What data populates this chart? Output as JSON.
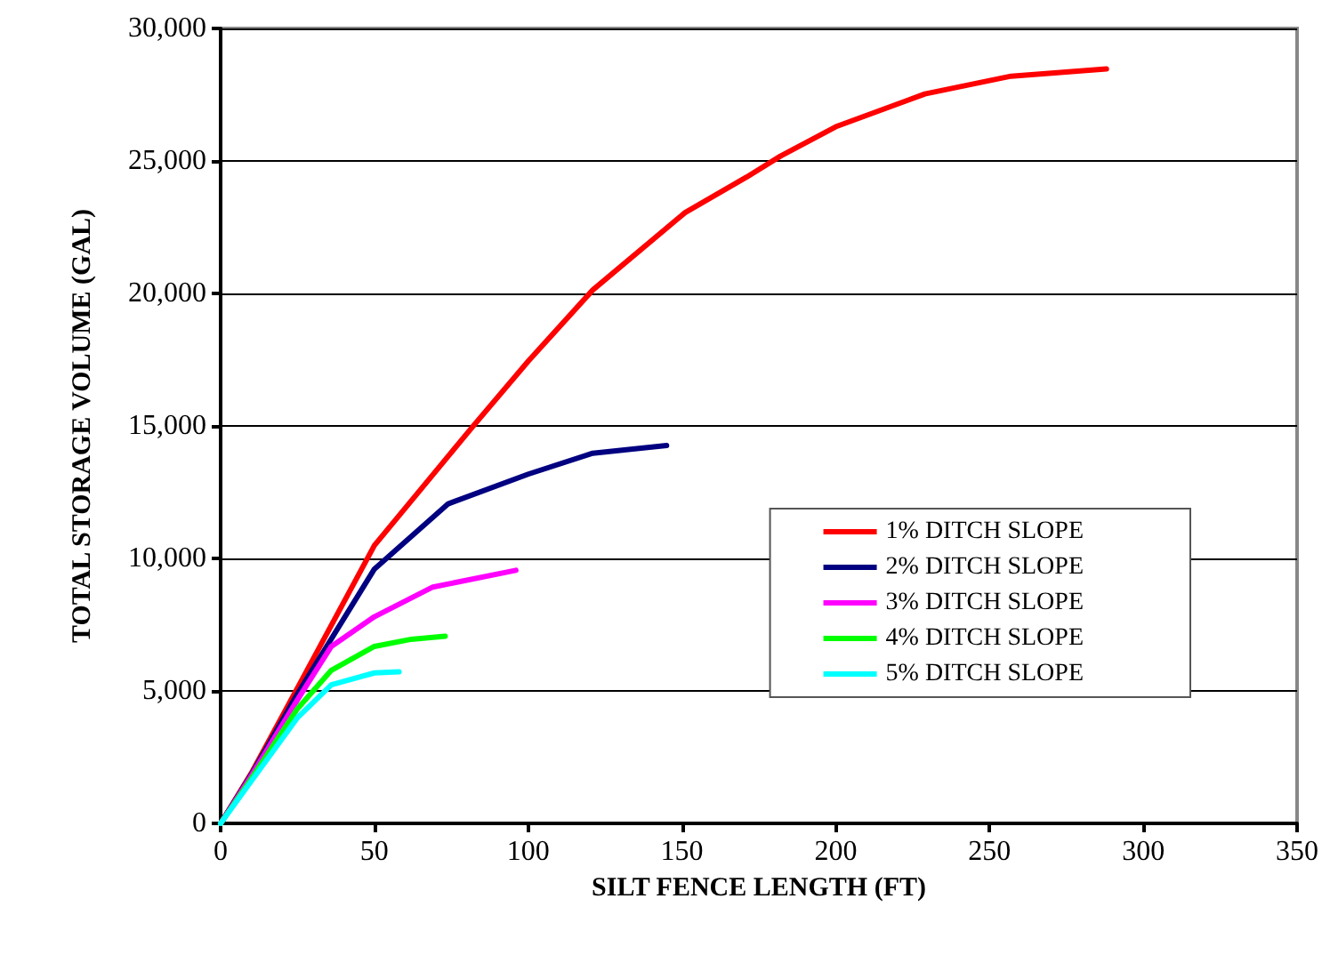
{
  "chart_data": {
    "type": "line",
    "xlabel": "SILT FENCE LENGTH (FT)",
    "ylabel": "TOTAL STORAGE VOLUME (GAL)",
    "xlim": [
      0,
      350
    ],
    "xticks": [
      0,
      50,
      100,
      150,
      200,
      250,
      300,
      350
    ],
    "ylim": [
      0,
      30000
    ],
    "yticks": [
      {
        "value": 0,
        "label": "0"
      },
      {
        "value": 5000,
        "label": "5,000"
      },
      {
        "value": 10000,
        "label": "10,000"
      },
      {
        "value": 15000,
        "label": "15,000"
      },
      {
        "value": 20000,
        "label": "20,000"
      },
      {
        "value": 25000,
        "label": "25,000"
      },
      {
        "value": 30000,
        "label": "30,000"
      }
    ],
    "grid": "y",
    "legend": "right",
    "marker": "none",
    "line_style": "solid",
    "series": [
      {
        "name": "1% DITCH SLOPE",
        "color": "#ff0000",
        "x": [
          0,
          10,
          25,
          50,
          82,
          100,
          121,
          151,
          171,
          182,
          200,
          229,
          257,
          288
        ],
        "values": [
          0,
          1900,
          5110,
          10490,
          14980,
          17440,
          20130,
          23050,
          24390,
          25180,
          26290,
          27530,
          28200,
          28470
        ]
      },
      {
        "name": "2% DITCH SLOPE",
        "color": "#000080",
        "x": [
          0,
          10,
          25,
          50,
          74,
          100,
          121,
          145
        ],
        "values": [
          0,
          1850,
          4890,
          9600,
          12060,
          13180,
          13970,
          14260
        ]
      },
      {
        "name": "3% DITCH SLOPE",
        "color": "#ff00ff",
        "x": [
          0,
          10,
          25,
          36,
          50,
          69,
          96
        ],
        "values": [
          0,
          1800,
          4670,
          6680,
          7800,
          8920,
          9550
        ]
      },
      {
        "name": "4% DITCH SLOPE",
        "color": "#00ff00",
        "x": [
          0,
          10,
          25,
          36,
          50,
          62,
          73
        ],
        "values": [
          0,
          1700,
          4330,
          5780,
          6680,
          6950,
          7060
        ]
      },
      {
        "name": "5% DITCH SLOPE",
        "color": "#00ffff",
        "x": [
          0,
          10,
          25,
          36,
          50,
          58
        ],
        "values": [
          0,
          1600,
          3990,
          5230,
          5680,
          5720
        ]
      }
    ]
  }
}
